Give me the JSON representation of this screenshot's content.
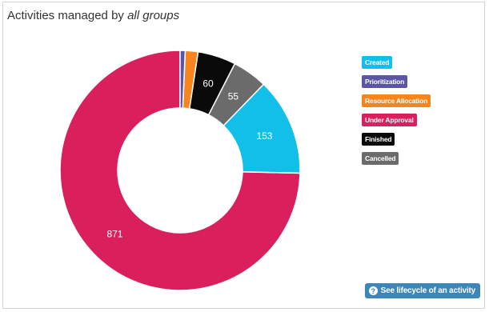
{
  "title": {
    "prefix": "Activities managed by",
    "emphasis": "all groups"
  },
  "chart_data": {
    "type": "pie",
    "variant": "donut",
    "categories": [
      "Created",
      "Prioritization",
      "Resource Allocation",
      "Under Approval",
      "Finished",
      "Cancelled"
    ],
    "values": [
      153,
      8,
      20,
      871,
      60,
      55
    ],
    "data_labels": [
      "153",
      "",
      "",
      "871",
      "60",
      "55"
    ],
    "colors": [
      "#12bfe9",
      "#5b55a5",
      "#f6841f",
      "#d9205c",
      "#0a0a0a",
      "#6b6b6b"
    ],
    "legend_position": "right"
  },
  "info_button": {
    "icon": "question-circle-icon",
    "label": "See lifecycle of an activity"
  }
}
